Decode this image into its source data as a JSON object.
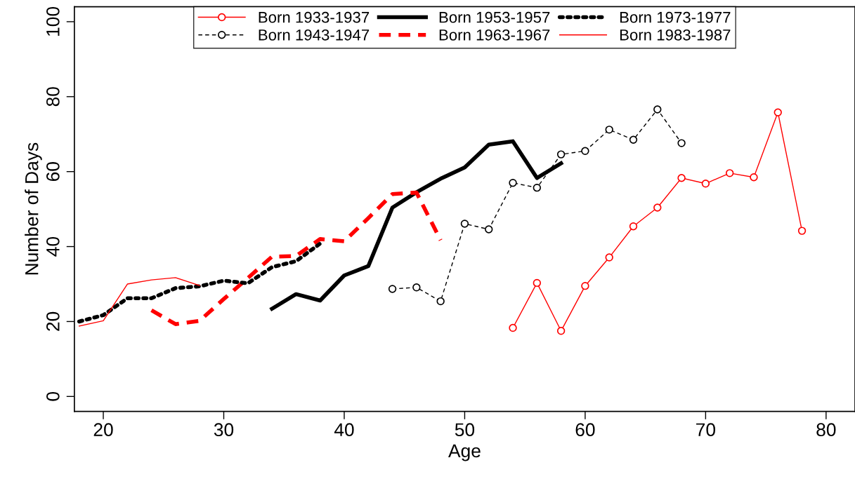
{
  "chart_data": {
    "type": "line",
    "xlabel": "Age",
    "ylabel": "Number of Days",
    "xlim": [
      17.6,
      82.4
    ],
    "ylim": [
      -4,
      104
    ],
    "xticks": [
      20,
      30,
      40,
      50,
      60,
      70,
      80
    ],
    "yticks": [
      0,
      20,
      40,
      60,
      80,
      100
    ],
    "grid": false,
    "legend": "top",
    "series": [
      {
        "name": "Born 1933-1937",
        "color": "#ff0000",
        "marker": "circle",
        "line_style": "solid",
        "x": [
          54,
          56,
          58,
          60,
          62,
          64,
          66,
          68,
          70,
          72,
          74,
          76,
          78
        ],
        "values": [
          18.3,
          30.3,
          17.5,
          29.5,
          37.1,
          45.4,
          50.4,
          58.3,
          56.8,
          59.6,
          58.5,
          75.8,
          44.2
        ]
      },
      {
        "name": "Born 1943-1947",
        "color": "#000000",
        "marker": "circle",
        "line_style": "dashed",
        "x": [
          44,
          46,
          48,
          50,
          52,
          54,
          56,
          58,
          60,
          62,
          64,
          66,
          68
        ],
        "values": [
          28.7,
          29.1,
          25.4,
          46.1,
          44.6,
          57.0,
          55.7,
          64.6,
          65.5,
          71.2,
          68.5,
          76.6,
          67.6
        ]
      },
      {
        "name": "Born 1953-1957",
        "color": "#000000",
        "marker": "none",
        "line_style": "solid",
        "x": [
          34,
          36,
          38,
          40,
          42,
          44,
          46,
          48,
          50,
          52,
          54,
          56,
          58
        ],
        "values": [
          23.4,
          27.3,
          25.6,
          32.3,
          34.8,
          50.4,
          54.5,
          58.1,
          61.1,
          67.2,
          68.1,
          58.3,
          62.2
        ]
      },
      {
        "name": "Born 1963-1967",
        "color": "#ff0000",
        "marker": "none",
        "line_style": "dashed",
        "x": [
          24,
          26,
          28,
          30,
          32,
          34,
          36,
          38,
          40,
          42,
          44,
          46,
          48
        ],
        "values": [
          23.0,
          19.3,
          20.2,
          26.0,
          31.6,
          37.3,
          37.5,
          42.0,
          41.4,
          47.6,
          54.0,
          54.4,
          41.7
        ]
      },
      {
        "name": "Born 1973-1977",
        "color": "#000000",
        "marker": "none",
        "line_style": "dotted",
        "x": [
          18,
          20,
          22,
          24,
          26,
          28,
          30,
          32,
          34,
          36,
          38
        ],
        "values": [
          20.0,
          21.7,
          26.2,
          26.2,
          28.9,
          29.4,
          30.9,
          30.2,
          34.5,
          36.1,
          40.8
        ]
      },
      {
        "name": "Born 1983-1987",
        "color": "#ff0000",
        "marker": "none",
        "line_style": "solid",
        "x": [
          18,
          20,
          22,
          24,
          26,
          28
        ],
        "values": [
          18.8,
          20.2,
          30.0,
          31.1,
          31.7,
          29.6
        ]
      }
    ]
  }
}
